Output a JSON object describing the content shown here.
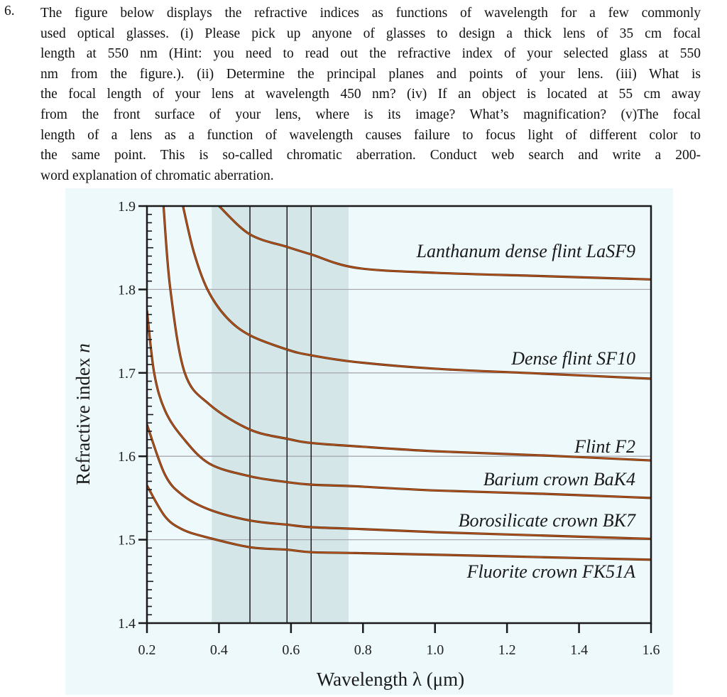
{
  "question": {
    "number": "6.",
    "lines": [
      "The figure below displays the refractive indices as functions of wavelength for a few commonly",
      "used optical glasses. (i) Please pick up anyone of glasses to design a thick lens of 35 cm focal",
      "length at 550 nm (Hint: you need to read out the refractive index of your selected glass at 550",
      "nm from the figure.). (ii) Determine the principal planes and points of your lens. (iii) What is",
      "the focal length of your lens at wavelength 450 nm? (iv) If an object is located at 55 cm away",
      "from the front surface of your lens, where is its image? What’s magnification? (v)The focal",
      "length of a lens as a function of wavelength causes failure to focus light of different color to",
      "the same point. This is so-called chromatic aberration. Conduct web search and write a 200-",
      "word explanation of chromatic aberration."
    ]
  },
  "chart_data": {
    "type": "line",
    "title": "",
    "xlabel": "Wavelength λ (μm)",
    "ylabel": "Refractive index n",
    "xlim": [
      0.2,
      1.6
    ],
    "ylim": [
      1.4,
      1.9
    ],
    "xticks": [
      "0.2",
      "0.4",
      "0.6",
      "0.8",
      "1.0",
      "1.2",
      "1.4",
      "1.6"
    ],
    "yticks": [
      "1.4",
      "1.5",
      "1.6",
      "1.7",
      "1.8",
      "1.9"
    ],
    "grid": "horizontal",
    "visible_band": [
      0.38,
      0.76
    ],
    "reference_lines_x": [
      0.486,
      0.589,
      0.656
    ],
    "colors": {
      "curve": "#b4521c",
      "curve_edge": "#5a2a0c",
      "band": "#d4e6e8",
      "background": "#eef9fc",
      "grid": "#a9a9b4"
    },
    "series": [
      {
        "name": "Lanthanum dense flint LaSF9",
        "points": [
          [
            0.4,
            1.9
          ],
          [
            0.486,
            1.866
          ],
          [
            0.589,
            1.851
          ],
          [
            0.656,
            1.842
          ],
          [
            0.78,
            1.826
          ],
          [
            1.0,
            1.82
          ],
          [
            1.3,
            1.816
          ],
          [
            1.6,
            1.812
          ]
        ]
      },
      {
        "name": "Dense flint SF10",
        "points": [
          [
            0.3,
            1.9
          ],
          [
            0.33,
            1.845
          ],
          [
            0.368,
            1.8
          ],
          [
            0.42,
            1.767
          ],
          [
            0.486,
            1.745
          ],
          [
            0.589,
            1.728
          ],
          [
            0.656,
            1.721
          ],
          [
            0.78,
            1.713
          ],
          [
            1.0,
            1.705
          ],
          [
            1.3,
            1.699
          ],
          [
            1.6,
            1.693
          ]
        ]
      },
      {
        "name": "Flint F2",
        "points": [
          [
            0.246,
            1.9
          ],
          [
            0.265,
            1.8
          ],
          [
            0.305,
            1.7
          ],
          [
            0.374,
            1.662
          ],
          [
            0.486,
            1.632
          ],
          [
            0.589,
            1.621
          ],
          [
            0.656,
            1.616
          ],
          [
            0.78,
            1.612
          ],
          [
            1.0,
            1.606
          ],
          [
            1.3,
            1.601
          ],
          [
            1.6,
            1.595
          ]
        ]
      },
      {
        "name": "Barium crown BaK4",
        "points": [
          [
            0.2,
            1.775
          ],
          [
            0.22,
            1.7
          ],
          [
            0.25,
            1.655
          ],
          [
            0.3,
            1.622
          ],
          [
            0.374,
            1.591
          ],
          [
            0.486,
            1.576
          ],
          [
            0.589,
            1.569
          ],
          [
            0.656,
            1.566
          ],
          [
            0.78,
            1.564
          ],
          [
            1.0,
            1.559
          ],
          [
            1.3,
            1.555
          ],
          [
            1.6,
            1.55
          ]
        ]
      },
      {
        "name": "Borosilicate crown BK7",
        "points": [
          [
            0.2,
            1.638
          ],
          [
            0.25,
            1.578
          ],
          [
            0.3,
            1.553
          ],
          [
            0.374,
            1.536
          ],
          [
            0.486,
            1.523
          ],
          [
            0.589,
            1.518
          ],
          [
            0.656,
            1.515
          ],
          [
            0.78,
            1.513
          ],
          [
            1.0,
            1.509
          ],
          [
            1.3,
            1.505
          ],
          [
            1.6,
            1.501
          ]
        ]
      },
      {
        "name": "Fluorite crown FK51A",
        "points": [
          [
            0.2,
            1.565
          ],
          [
            0.25,
            1.528
          ],
          [
            0.3,
            1.512
          ],
          [
            0.374,
            1.502
          ],
          [
            0.486,
            1.491
          ],
          [
            0.589,
            1.488
          ],
          [
            0.656,
            1.485
          ],
          [
            0.78,
            1.484
          ],
          [
            1.0,
            1.482
          ],
          [
            1.3,
            1.479
          ],
          [
            1.6,
            1.476
          ]
        ]
      }
    ]
  }
}
